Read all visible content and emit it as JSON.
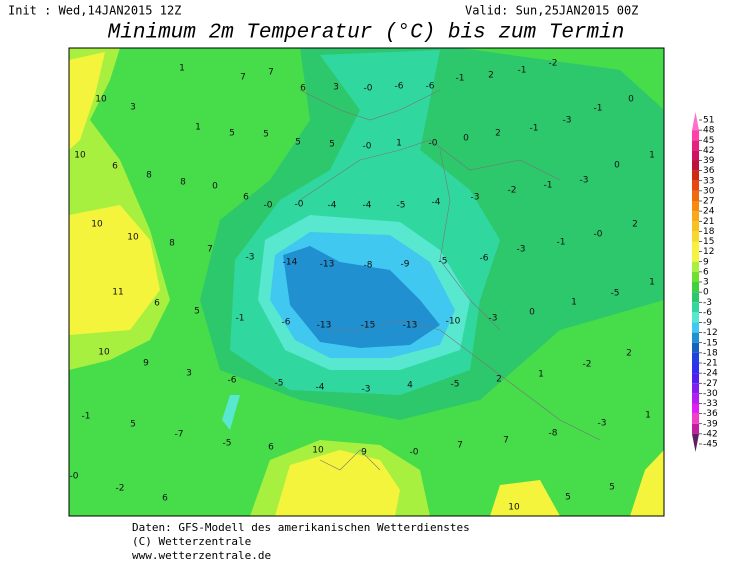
{
  "header": {
    "init": "Init : Wed,14JAN2015 12Z",
    "valid": "Valid: Sun,25JAN2015 00Z",
    "title": "Minimum 2m Temperatur (°C) bis zum Termin"
  },
  "map": {
    "labels": [
      "1",
      "7",
      "7",
      "6",
      "3",
      "-0",
      "-6",
      "-6",
      "-1",
      "2",
      "-1",
      "-2",
      "10",
      "3",
      "1",
      "5",
      "5",
      "5",
      "5",
      "-0",
      "1",
      "-0",
      "0",
      "2",
      "-1",
      "-3",
      "-1",
      "0",
      "10",
      "6",
      "8",
      "8",
      "0",
      "6",
      "-0",
      "-0",
      "-4",
      "-4",
      "-5",
      "-4",
      "-3",
      "-2",
      "-1",
      "-3",
      "0",
      "1",
      "10",
      "10",
      "8",
      "7",
      "-3",
      "-14",
      "-13",
      "-8",
      "-9",
      "-5",
      "-6",
      "-3",
      "-1",
      "-0",
      "2",
      "11",
      "6",
      "5",
      "-1",
      "-6",
      "-13",
      "-15",
      "-13",
      "-10",
      "-3",
      "0",
      "1",
      "-5",
      "1",
      "10",
      "9",
      "3",
      "-6",
      "-5",
      "-4",
      "-3",
      "4",
      "-5",
      "2",
      "1",
      "-2",
      "2",
      "-1",
      "5",
      "-7",
      "-5",
      "6",
      "10",
      "9",
      "-0",
      "7",
      "7",
      "-8",
      "-3",
      "1",
      "-0",
      "-2",
      "6",
      "10",
      "5",
      "5"
    ]
  },
  "legend": {
    "levels": [
      51,
      48,
      45,
      42,
      39,
      36,
      33,
      30,
      27,
      24,
      21,
      18,
      15,
      12,
      9,
      6,
      3,
      0,
      -3,
      -6,
      -9,
      -12,
      -15,
      -18,
      -21,
      -24,
      -27,
      -30,
      -33,
      -36,
      -39,
      -42,
      -45
    ],
    "colors": [
      "#ff70c8",
      "#ff40a8",
      "#e82080",
      "#d01060",
      "#c0103a",
      "#d02a10",
      "#e84810",
      "#f06a10",
      "#f88a10",
      "#f8a818",
      "#f8c020",
      "#f8d830",
      "#f8f040",
      "#f4f43c",
      "#a8f040",
      "#70e030",
      "#40d040",
      "#2ec86c",
      "#30d8a0",
      "#58e8d0",
      "#40c8f0",
      "#2090d0",
      "#1860c0",
      "#2040e0",
      "#3030f0",
      "#5020f0",
      "#8020f0",
      "#b020f0",
      "#e020f0",
      "#f040c8",
      "#c020a0",
      "#602060"
    ]
  },
  "footer": {
    "lines": [
      "Daten: GFS-Modell des amerikanischen Wetterdienstes",
      "(C) Wetterzentrale",
      "www.wetterzentrale.de"
    ]
  }
}
